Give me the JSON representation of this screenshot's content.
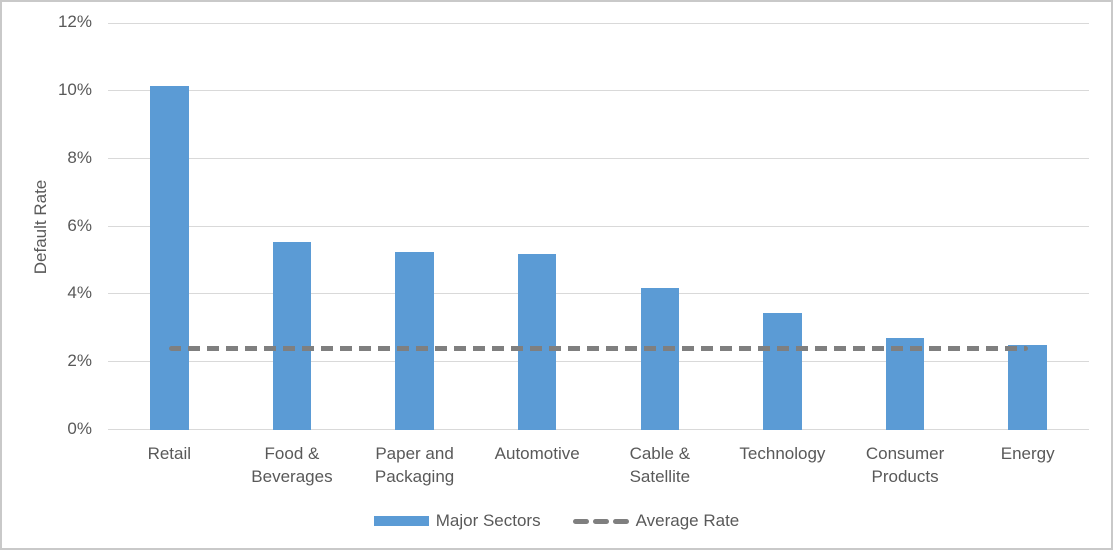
{
  "chart_data": {
    "type": "bar",
    "title": "",
    "xlabel": "",
    "ylabel": "Default Rate",
    "categories": [
      "Retail",
      "Food & Beverages",
      "Paper and Packaging",
      "Automotive",
      "Cable & Satellite",
      "Technology",
      "Consumer Products",
      "Energy"
    ],
    "series": [
      {
        "name": "Major Sectors",
        "type": "bar",
        "values": [
          10.15,
          5.55,
          5.25,
          5.2,
          4.2,
          3.45,
          2.7,
          2.5
        ]
      },
      {
        "name": "Average Rate",
        "type": "dashed-line",
        "value": 2.4
      }
    ],
    "ylim": [
      0,
      12
    ],
    "ytick_step": 2,
    "ytick_suffix": "%",
    "ytick_labels": [
      "0%",
      "2%",
      "4%",
      "6%",
      "8%",
      "10%",
      "12%"
    ],
    "grid": true,
    "legend_position": "bottom",
    "colors": {
      "bar": "#5B9BD5",
      "average_line": "#7F7F7F",
      "gridline": "#D9D9D9",
      "axis_text": "#595959",
      "chart_border": "#C9C9C9",
      "background": "#FFFFFF"
    }
  },
  "legend": {
    "bar_label": "Major Sectors",
    "line_label": "Average Rate"
  },
  "y_axis": {
    "label": "Default Rate"
  }
}
